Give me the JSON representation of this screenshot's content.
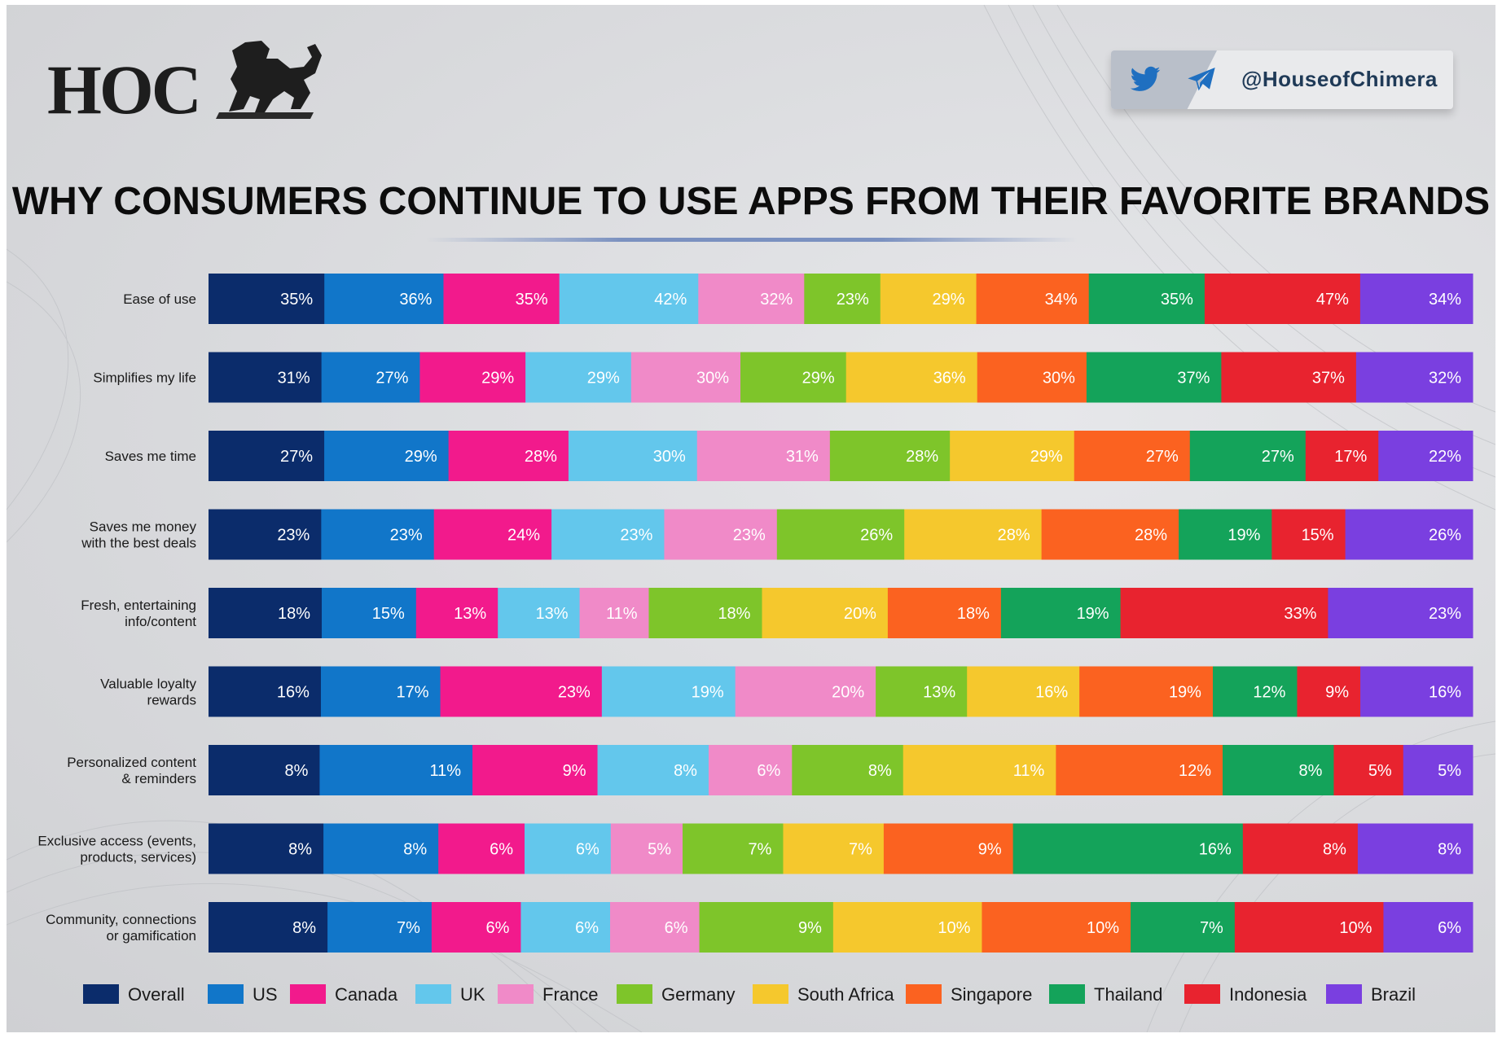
{
  "brand": {
    "logo_text": "HOC",
    "handle": "@HouseofChimera"
  },
  "icons": [
    "twitter-icon",
    "telegram-icon",
    "lion-logo-icon"
  ],
  "colors": {
    "Overall": "#0b2c6b",
    "US": "#1176c9",
    "Canada": "#f21a8c",
    "UK": "#63c7ec",
    "France": "#f08ac8",
    "Germany": "#7ec52a",
    "South Africa": "#f5c82d",
    "Singapore": "#fb6220",
    "Thailand": "#14a35a",
    "Indonesia": "#e8232f",
    "Brazil": "#7a3fe0"
  },
  "chart_data": {
    "type": "bar",
    "orientation": "horizontal-stacked",
    "title": "WHY CONSUMERS CONTINUE TO USE APPS FROM THEIR FAVORITE BRANDS",
    "unit": "%",
    "legend_position": "bottom",
    "categories": [
      "Ease of use",
      "Simplifies my life",
      "Saves me time",
      "Saves me money with the best deals",
      "Fresh, entertaining info/content",
      "Valuable loyalty rewards",
      "Personalized content & reminders",
      "Exclusive access (events, products, services)",
      "Community, connections or gamification"
    ],
    "category_lines": [
      [
        "Ease of use"
      ],
      [
        "Simplifies my life"
      ],
      [
        "Saves me time"
      ],
      [
        "Saves me money",
        "with the best deals"
      ],
      [
        "Fresh, entertaining",
        "info/content"
      ],
      [
        "Valuable loyalty",
        "rewards"
      ],
      [
        "Personalized content",
        "& reminders"
      ],
      [
        "Exclusive access (events,",
        "products, services)"
      ],
      [
        "Community, connections",
        "or gamification"
      ]
    ],
    "series": [
      {
        "name": "Overall",
        "values": [
          35,
          31,
          27,
          23,
          18,
          16,
          8,
          8,
          8
        ]
      },
      {
        "name": "US",
        "values": [
          36,
          27,
          29,
          23,
          15,
          17,
          11,
          8,
          7
        ]
      },
      {
        "name": "Canada",
        "values": [
          35,
          29,
          28,
          24,
          13,
          23,
          9,
          6,
          6
        ]
      },
      {
        "name": "UK",
        "values": [
          42,
          29,
          30,
          23,
          13,
          19,
          8,
          6,
          6
        ]
      },
      {
        "name": "France",
        "values": [
          32,
          30,
          31,
          23,
          11,
          20,
          6,
          5,
          6
        ]
      },
      {
        "name": "Germany",
        "values": [
          23,
          29,
          28,
          26,
          18,
          13,
          8,
          7,
          9
        ]
      },
      {
        "name": "South Africa",
        "values": [
          29,
          36,
          29,
          28,
          20,
          16,
          11,
          7,
          10
        ]
      },
      {
        "name": "Singapore",
        "values": [
          34,
          30,
          27,
          28,
          18,
          19,
          12,
          9,
          10
        ]
      },
      {
        "name": "Thailand",
        "values": [
          35,
          37,
          27,
          19,
          19,
          12,
          8,
          16,
          7
        ]
      },
      {
        "name": "Indonesia",
        "values": [
          47,
          37,
          17,
          15,
          33,
          9,
          5,
          8,
          10
        ]
      },
      {
        "name": "Brazil",
        "values": [
          34,
          32,
          22,
          26,
          23,
          16,
          5,
          8,
          6
        ]
      }
    ]
  }
}
